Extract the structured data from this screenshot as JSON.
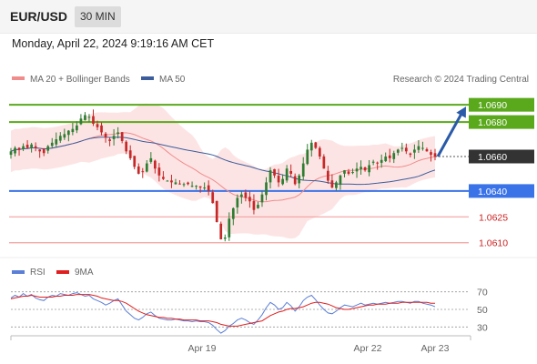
{
  "header": {
    "pair": "EUR/USD",
    "timeframe": "30 MIN",
    "datetime": "Monday, April 22, 2024 9:19:16 AM CET"
  },
  "legend": {
    "ma20_label": "MA 20 + Bollinger Bands",
    "ma20_color": "#f08c8c",
    "ma50_label": "MA 50",
    "ma50_color": "#3b5d9c",
    "credit": "Research © 2024 Trading Central"
  },
  "rsi_legend": {
    "rsi_label": "RSI",
    "rsi_color": "#5b7fd6",
    "ma_label": "9MA",
    "ma_color": "#e02020"
  },
  "colors": {
    "up_candle": "#2e7d32",
    "down_candle": "#c62828",
    "resistance": "#5aa91c",
    "support": "#3a73e8",
    "minor_support": "#f2a0a0",
    "band_fill": "#fde4e4",
    "current_price": "#333333",
    "arrow": "#2a5aa8"
  },
  "chart_data": [
    {
      "type": "candlestick",
      "title": "EUR/USD 30 MIN",
      "ylim": [
        1.0603,
        1.0698
      ],
      "x_ticks": [
        "Apr 19",
        "Apr 22",
        "Apr 23"
      ],
      "levels": [
        {
          "value": 1.069,
          "label": "1.0690",
          "kind": "resistance"
        },
        {
          "value": 1.068,
          "label": "1.0680",
          "kind": "resistance"
        },
        {
          "value": 1.066,
          "label": "1.0660",
          "kind": "current"
        },
        {
          "value": 1.064,
          "label": "1.0640",
          "kind": "support"
        },
        {
          "value": 1.0625,
          "label": "1.0625",
          "kind": "minor_support"
        },
        {
          "value": 1.061,
          "label": "1.0610",
          "kind": "minor_support"
        }
      ],
      "close": [
        1.0663,
        1.0665,
        1.0664,
        1.0666,
        1.0665,
        1.0667,
        1.0665,
        1.0663,
        1.0662,
        1.0666,
        1.0668,
        1.067,
        1.0672,
        1.0673,
        1.0675,
        1.0676,
        1.0678,
        1.0682,
        1.0684,
        1.0683,
        1.0679,
        1.0677,
        1.0674,
        1.0671,
        1.0669,
        1.0672,
        1.0674,
        1.0669,
        1.0663,
        1.0659,
        1.0654,
        1.065,
        1.0651,
        1.0656,
        1.0659,
        1.0653,
        1.0649,
        1.0647,
        1.0646,
        1.0645,
        1.0645,
        1.0644,
        1.0644,
        1.0644,
        1.0643,
        1.0643,
        1.0642,
        1.0642,
        1.064,
        1.0633,
        1.0622,
        1.0612,
        1.0613,
        1.0624,
        1.063,
        1.0636,
        1.0638,
        1.0636,
        1.0634,
        1.0629,
        1.0632,
        1.0638,
        1.0645,
        1.0652,
        1.0649,
        1.0645,
        1.0647,
        1.0653,
        1.065,
        1.0644,
        1.0649,
        1.0656,
        1.0664,
        1.0668,
        1.0665,
        1.066,
        1.0653,
        1.0646,
        1.0642,
        1.0645,
        1.0649,
        1.0652,
        1.065,
        1.0651,
        1.0653,
        1.0654,
        1.0652,
        1.0655,
        1.0657,
        1.0656,
        1.0658,
        1.066,
        1.0659,
        1.0662,
        1.0664,
        1.0665,
        1.0663,
        1.0661,
        1.0664,
        1.0666,
        1.0665,
        1.0663,
        1.0661,
        1.066
      ],
      "indicators": [
        "MA 20 + Bollinger Bands",
        "MA 50"
      ],
      "projection": {
        "from": 1.066,
        "to": 1.069
      }
    },
    {
      "type": "line",
      "title": "RSI",
      "series": [
        {
          "name": "RSI",
          "values": [
            63,
            66,
            64,
            68,
            65,
            67,
            63,
            61,
            60,
            64,
            66,
            65,
            68,
            67,
            66,
            68,
            69,
            67,
            65,
            66,
            62,
            60,
            58,
            55,
            57,
            60,
            62,
            55,
            48,
            44,
            40,
            38,
            41,
            45,
            47,
            43,
            40,
            39,
            38,
            38,
            39,
            38,
            37,
            37,
            36,
            37,
            36,
            36,
            35,
            32,
            27,
            23,
            26,
            31,
            34,
            38,
            40,
            38,
            35,
            33,
            38,
            44,
            52,
            58,
            55,
            50,
            52,
            58,
            54,
            48,
            53,
            60,
            64,
            66,
            61,
            55,
            50,
            46,
            45,
            48,
            52,
            55,
            54,
            53,
            55,
            57,
            55,
            56,
            57,
            56,
            57,
            58,
            57,
            58,
            59,
            59,
            58,
            57,
            59,
            59,
            57,
            56,
            55,
            53
          ]
        },
        {
          "name": "9MA",
          "values": [
            62,
            63,
            64,
            65,
            65,
            66,
            65,
            64,
            64,
            64,
            64,
            65,
            65,
            66,
            66,
            66,
            67,
            67,
            67,
            67,
            66,
            65,
            63,
            62,
            61,
            60,
            60,
            59,
            57,
            54,
            51,
            48,
            46,
            44,
            43,
            42,
            41,
            41,
            40,
            40,
            39,
            39,
            38,
            38,
            38,
            38,
            37,
            37,
            37,
            36,
            35,
            33,
            32,
            31,
            31,
            31,
            32,
            33,
            34,
            35,
            36,
            37,
            40,
            43,
            45,
            47,
            48,
            50,
            51,
            51,
            52,
            53,
            55,
            57,
            58,
            58,
            57,
            56,
            54,
            52,
            51,
            50,
            50,
            51,
            52,
            53,
            54,
            55,
            55,
            56,
            56,
            56,
            57,
            57,
            57,
            58,
            58,
            58,
            58,
            58,
            58,
            58,
            57,
            57
          ]
        }
      ],
      "y_ticks": [
        "70",
        "50",
        "30"
      ],
      "ylim": [
        20,
        80
      ]
    }
  ]
}
